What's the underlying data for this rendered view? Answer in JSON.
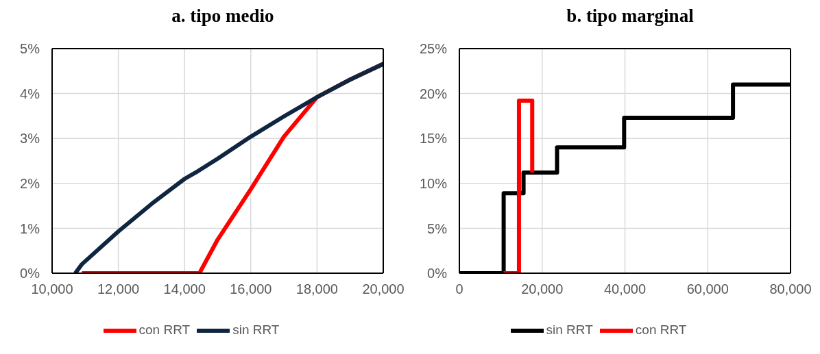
{
  "chart_data": [
    {
      "type": "line",
      "title": "a. tipo medio",
      "xlim": [
        10000,
        20000
      ],
      "xticks": [
        {
          "value": 10000,
          "label": "10,000"
        },
        {
          "value": 12000,
          "label": "12,000"
        },
        {
          "value": 14000,
          "label": "14,000"
        },
        {
          "value": 16000,
          "label": "16,000"
        },
        {
          "value": 18000,
          "label": "18,000"
        },
        {
          "value": 20000,
          "label": "20,000"
        }
      ],
      "ylim": [
        0,
        5
      ],
      "yticks": [
        {
          "value": 0,
          "label": "0%"
        },
        {
          "value": 1,
          "label": "1%"
        },
        {
          "value": 2,
          "label": "2%"
        },
        {
          "value": 3,
          "label": "3%"
        },
        {
          "value": 4,
          "label": "4%"
        },
        {
          "value": 5,
          "label": "5%"
        }
      ],
      "grid": true,
      "legend": "bottom",
      "series": [
        {
          "name": "con RRT",
          "color": "#ff0000",
          "x": [
            10900,
            14450,
            15000,
            16000,
            17000,
            18000,
            19000,
            20000
          ],
          "values": [
            0,
            0,
            0.75,
            1.87,
            3.04,
            3.92,
            4.31,
            4.66
          ]
        },
        {
          "name": "sin RRT",
          "color": "#0f2640",
          "x": [
            10700,
            10900,
            12000,
            13000,
            14000,
            14400,
            15000,
            16000,
            17000,
            18000,
            19000,
            20000
          ],
          "values": [
            0,
            0.2,
            0.93,
            1.54,
            2.1,
            2.27,
            2.55,
            3.04,
            3.49,
            3.92,
            4.31,
            4.66
          ]
        }
      ]
    },
    {
      "type": "step",
      "title": "b. tipo marginal",
      "xlim": [
        0,
        80000
      ],
      "xticks": [
        0,
        {
          "value": 20000,
          "label": "20,000"
        },
        {
          "value": 40000,
          "label": "40,000"
        },
        {
          "value": 60000,
          "label": "60,000"
        },
        {
          "value": 80000,
          "label": "80,000"
        }
      ],
      "ylim": [
        0,
        25
      ],
      "yticks": [
        {
          "value": 0,
          "label": "0%"
        },
        {
          "value": 5,
          "label": "5%"
        },
        {
          "value": 10,
          "label": "10%"
        },
        {
          "value": 15,
          "label": "15%"
        },
        {
          "value": 20,
          "label": "20%"
        },
        {
          "value": 25,
          "label": "25%"
        }
      ],
      "grid": true,
      "legend": "bottom",
      "series": [
        {
          "name": "sin RRT",
          "color": "#000000",
          "x": [
            0,
            10700,
            15500,
            23600,
            39800,
            66100,
            80000
          ],
          "values": [
            0,
            8.9,
            11.2,
            14.0,
            17.3,
            21.0,
            21.0
          ]
        },
        {
          "name": "con RRT",
          "color": "#ff0000",
          "x": [
            10700,
            14400,
            17600
          ],
          "values": [
            0,
            19.2,
            11.2
          ]
        }
      ]
    }
  ]
}
